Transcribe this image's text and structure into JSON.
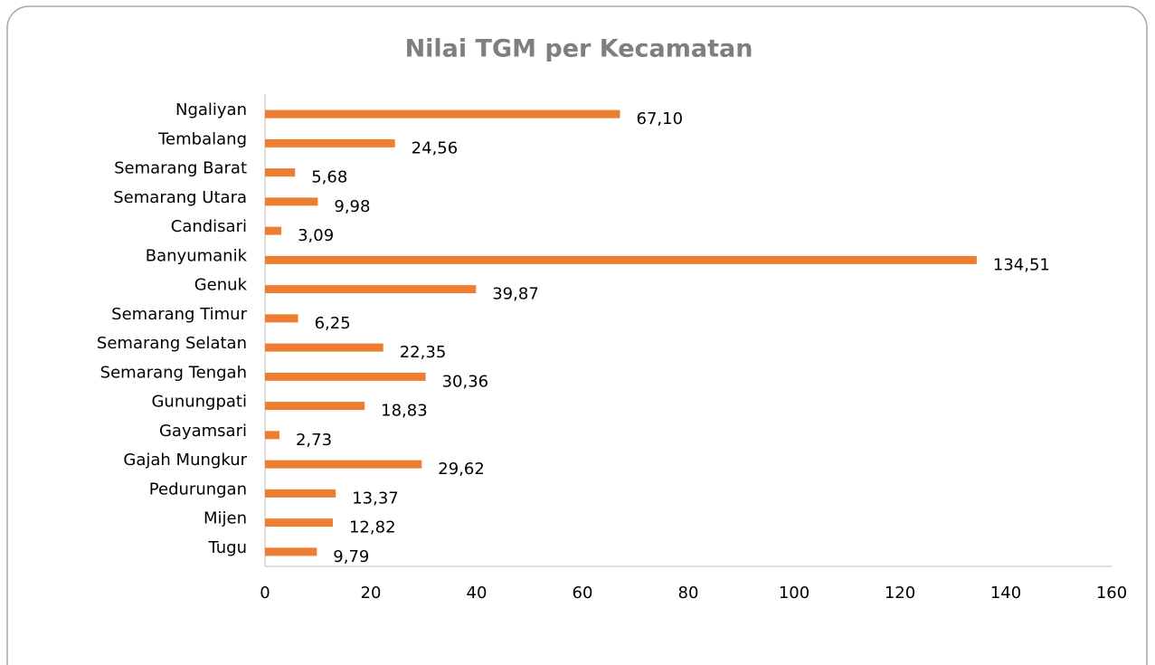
{
  "chart_data": {
    "type": "bar",
    "orientation": "horizontal",
    "title": "Nilai TGM per Kecamatan",
    "categories": [
      "Ngaliyan",
      "Tembalang",
      "Semarang Barat",
      "Semarang Utara",
      "Candisari",
      "Banyumanik",
      "Genuk",
      "Semarang Timur",
      "Semarang Selatan",
      "Semarang Tengah",
      "Gunungpati",
      "Gayamsari",
      "Gajah Mungkur",
      "Pedurungan",
      "Mijen",
      "Tugu"
    ],
    "values": [
      67.1,
      24.56,
      5.68,
      9.98,
      3.09,
      134.51,
      39.87,
      6.25,
      22.35,
      30.36,
      18.83,
      2.73,
      29.62,
      13.37,
      12.82,
      9.79
    ],
    "value_labels": [
      "67,10",
      "24,56",
      "5,68",
      "9,98",
      "3,09",
      "134,51",
      "39,87",
      "6,25",
      "22,35",
      "30,36",
      "18,83",
      "2,73",
      "29,62",
      "13,37",
      "12,82",
      "9,79"
    ],
    "color": "#ed7d31",
    "xlim": [
      0,
      160
    ],
    "xticks": [
      0,
      20,
      40,
      60,
      80,
      100,
      120,
      140,
      160
    ],
    "grid": false
  }
}
